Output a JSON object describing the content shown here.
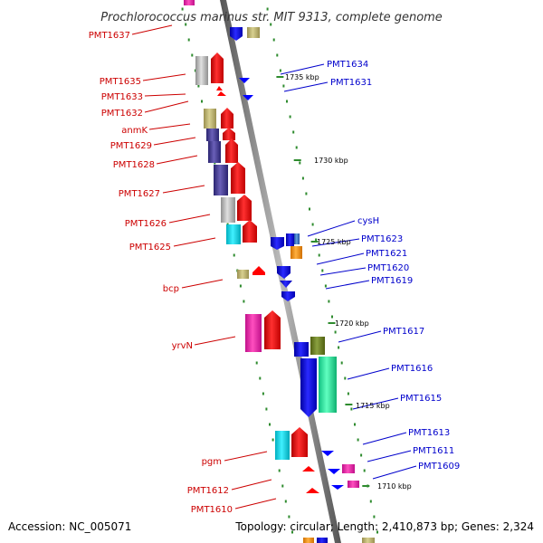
{
  "title": "Prochlorococcus marinus str. MIT 9313, complete genome",
  "footer": {
    "accession": "Accession: NC_005071",
    "summary": "Topology: circular; Length: 2,410,873 bp; Genes: 2,324"
  },
  "ticks": [
    "1735 kbp",
    "1730 kbp",
    "1725 kbp",
    "1720 kbp",
    "1715 kbp",
    "1710 kbp"
  ],
  "left_genes": [
    "PMT1637",
    "PMT1635",
    "PMT1633",
    "PMT1632",
    "anmK",
    "PMT1629",
    "PMT1628",
    "PMT1627",
    "PMT1626",
    "PMT1625",
    "bcp",
    "yrvN",
    "pgm",
    "PMT1612",
    "PMT1610"
  ],
  "right_genes": [
    "PMT1634",
    "PMT1631",
    "cysH",
    "PMT1623",
    "PMT1621",
    "PMT1620",
    "PMT1619",
    "PMT1617",
    "PMT1616",
    "PMT1615",
    "PMT1613",
    "PMT1611",
    "PMT1609"
  ],
  "colors": {
    "forward_strand": "#ff0000",
    "reverse_strand": "#0000ff",
    "left_label": "#cc0000",
    "right_label": "#0000cc",
    "backbone": "#888888",
    "dots": "#2e8b2e"
  }
}
